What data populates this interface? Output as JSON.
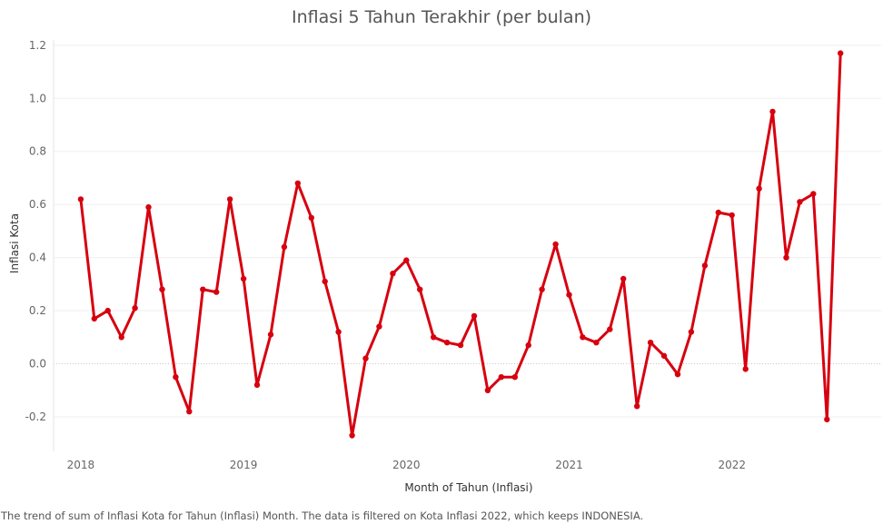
{
  "chart_data": {
    "type": "line",
    "title": "Inflasi 5 Tahun Terakhir (per bulan)",
    "xlabel": "Month of Tahun (Inflasi)",
    "ylabel": "Inflasi Kota",
    "x_ticks": [
      "2018",
      "2019",
      "2020",
      "2021",
      "2022"
    ],
    "y_ticks": [
      "-0.2",
      "0.0",
      "0.2",
      "0.4",
      "0.6",
      "0.8",
      "1.0",
      "1.2"
    ],
    "ylim": [
      -0.33,
      1.22
    ],
    "xlim": [
      "2017-11",
      "2022-12"
    ],
    "grid": true,
    "line_color": "#d7000f",
    "series": [
      {
        "x": [
          "2018-01",
          "2018-02",
          "2018-03",
          "2018-04",
          "2018-05",
          "2018-06",
          "2018-07",
          "2018-08",
          "2018-09",
          "2018-10",
          "2018-11",
          "2018-12",
          "2019-01",
          "2019-02",
          "2019-03",
          "2019-04",
          "2019-05",
          "2019-06",
          "2019-07",
          "2019-08",
          "2019-09",
          "2019-10",
          "2019-11",
          "2019-12",
          "2020-01",
          "2020-02",
          "2020-03",
          "2020-04",
          "2020-05",
          "2020-06",
          "2020-07",
          "2020-08",
          "2020-09",
          "2020-10",
          "2020-11",
          "2020-12",
          "2021-01",
          "2021-02",
          "2021-03",
          "2021-04",
          "2021-05",
          "2021-06",
          "2021-07",
          "2021-08",
          "2021-09",
          "2021-10",
          "2021-11",
          "2021-12",
          "2022-01",
          "2022-02",
          "2022-03",
          "2022-04",
          "2022-05",
          "2022-06",
          "2022-07",
          "2022-08",
          "2022-09"
        ],
        "values": [
          0.62,
          0.17,
          0.2,
          0.1,
          0.21,
          0.59,
          0.28,
          -0.05,
          -0.18,
          0.28,
          0.27,
          0.62,
          0.32,
          -0.08,
          0.11,
          0.44,
          0.68,
          0.55,
          0.31,
          0.12,
          -0.27,
          0.02,
          0.14,
          0.34,
          0.39,
          0.28,
          0.1,
          0.08,
          0.07,
          0.18,
          -0.1,
          -0.05,
          -0.05,
          0.07,
          0.28,
          0.45,
          0.26,
          0.1,
          0.08,
          0.13,
          0.32,
          -0.16,
          0.08,
          0.03,
          -0.04,
          0.12,
          0.37,
          0.57,
          0.56,
          -0.02,
          0.66,
          0.95,
          0.4,
          0.61,
          0.64,
          -0.21,
          1.17
        ]
      }
    ]
  },
  "caption": "The trend of sum of Inflasi Kota for Tahun (Inflasi) Month. The data is filtered on Kota Inflasi 2022, which keeps INDONESIA."
}
